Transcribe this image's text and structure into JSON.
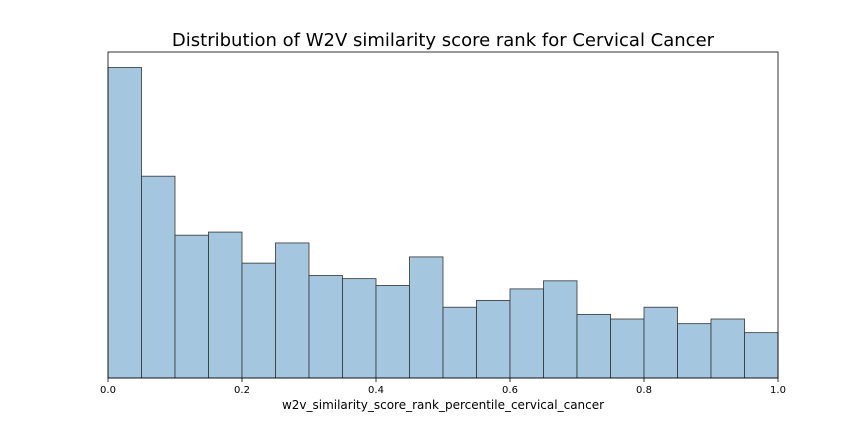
{
  "chart_data": {
    "type": "bar",
    "title": "Distribution of W2V similarity score rank for Cervical Cancer",
    "xlabel": "w2v_similarity_score_rank_percentile_cervical_cancer",
    "ylabel": "",
    "xlim": [
      0.0,
      1.0
    ],
    "ylim": [
      0,
      1.05
    ],
    "y_ticks_shown": false,
    "grid": false,
    "x_ticks": [
      "0.0",
      "0.2",
      "0.4",
      "0.6",
      "0.8",
      "1.0"
    ],
    "bin_edges": [
      0.0,
      0.05,
      0.1,
      0.15,
      0.2,
      0.25,
      0.3,
      0.35,
      0.4,
      0.45,
      0.5,
      0.55,
      0.6,
      0.65,
      0.7,
      0.75,
      0.8,
      0.85,
      0.9,
      0.95,
      1.0
    ],
    "values": [
      1.0,
      0.65,
      0.46,
      0.47,
      0.37,
      0.435,
      0.33,
      0.32,
      0.298,
      0.39,
      0.228,
      0.25,
      0.287,
      0.313,
      0.205,
      0.19,
      0.228,
      0.175,
      0.19,
      0.146
    ],
    "colors": {
      "bar_fill": "#a4c7df",
      "bar_edge": "#333333",
      "axes": "#000000"
    }
  }
}
